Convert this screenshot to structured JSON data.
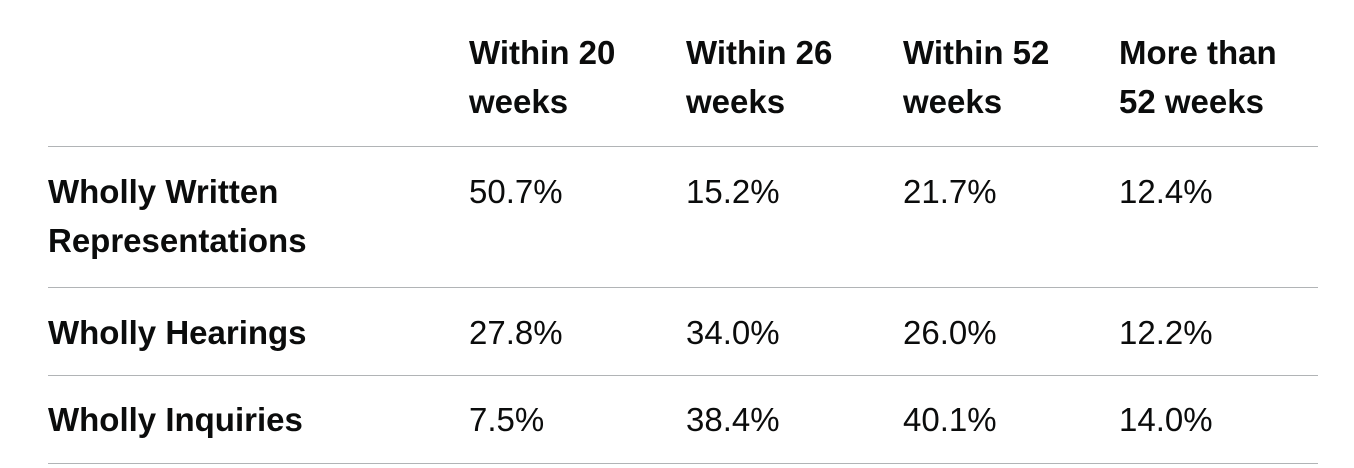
{
  "table": {
    "columns": [
      "",
      "Within 20 weeks",
      "Within 26 weeks",
      "Within 52 weeks",
      "More than 52 weeks"
    ],
    "rows": [
      {
        "label": "Wholly Written Representations",
        "values": [
          "50.7%",
          "15.2%",
          "21.7%",
          "12.4%"
        ]
      },
      {
        "label": "Wholly Hearings",
        "values": [
          "27.8%",
          "34.0%",
          "26.0%",
          "12.2%"
        ]
      },
      {
        "label": "Wholly Inquiries",
        "values": [
          "7.5%",
          "38.4%",
          "40.1%",
          "14.0%"
        ]
      }
    ]
  }
}
